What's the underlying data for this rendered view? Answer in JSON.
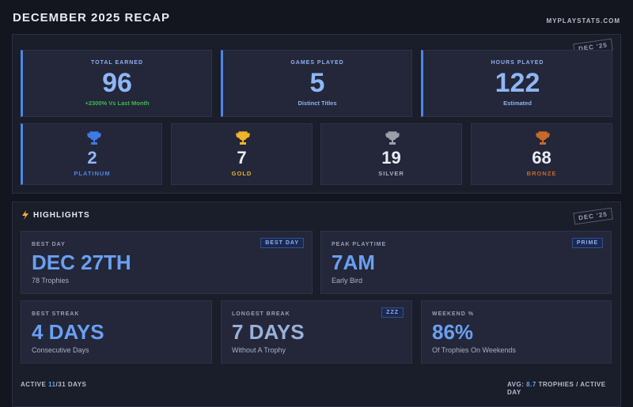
{
  "header": {
    "title": "DECEMBER 2025 RECAP",
    "site": "MYPLAYSTATS.COM"
  },
  "summary": {
    "stamp": "DEC '25",
    "stats": [
      {
        "label": "TOTAL EARNED",
        "value": 96,
        "note": "+2300% Vs Last Month"
      },
      {
        "label": "GAMES PLAYED",
        "value": 5,
        "note": "Distinct Titles"
      },
      {
        "label": "HOURS PLAYED",
        "value": 122,
        "note": "Estimated"
      }
    ],
    "trophies": [
      {
        "value": 2,
        "label": "PLATINUM"
      },
      {
        "value": 7,
        "label": "GOLD"
      },
      {
        "value": 19,
        "label": "SILVER"
      },
      {
        "value": 68,
        "label": "BRONZE"
      }
    ]
  },
  "highlights": {
    "title": "HIGHLIGHTS",
    "stamp": "DEC '25",
    "cards": [
      {
        "label": "BEST DAY",
        "value": "DEC 27TH",
        "note": "78 Trophies",
        "badge": "BEST DAY"
      },
      {
        "label": "PEAK PLAYTIME",
        "value": "7AM",
        "note": "Early Bird",
        "badge": "PRIME"
      },
      {
        "label": "BEST STREAK",
        "value": "4 DAYS",
        "note": "Consecutive Days"
      },
      {
        "label": "LONGEST BREAK",
        "value": "7 DAYS",
        "note": "Without A Trophy",
        "badge": "ZZZ"
      },
      {
        "label": "WEEKEND %",
        "value": "86%",
        "note": "Of Trophies On Weekends"
      }
    ]
  },
  "footer": {
    "active_prefix": "ACTIVE",
    "active_days": "11",
    "active_suffix": "/31 DAYS",
    "avg_prefix": "AVG:",
    "avg_value": "8.7",
    "avg_suffix": "TROPHIES / ACTIVE DAY"
  }
}
